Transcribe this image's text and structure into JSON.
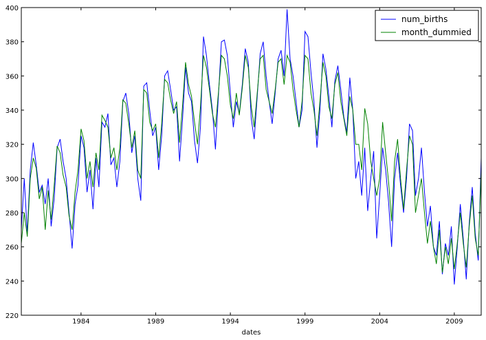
{
  "chart_data": {
    "type": "line",
    "xlabel": "dates",
    "ylabel": "",
    "title": "",
    "xlim": [
      1980.0,
      2010.8
    ],
    "ylim": [
      220,
      400
    ],
    "x_ticks": [
      1984,
      1989,
      1994,
      1999,
      2004,
      2009
    ],
    "y_ticks": [
      220,
      240,
      260,
      280,
      300,
      320,
      340,
      360,
      380,
      400
    ],
    "grid": false,
    "legend": "top-right",
    "colors": {
      "num_births": "#0000ff",
      "month_dummied": "#008000"
    },
    "series": [
      {
        "name": "num_births",
        "points": [
          [
            1980.0,
            270
          ],
          [
            1980.2,
            300
          ],
          [
            1980.4,
            268
          ],
          [
            1980.6,
            305
          ],
          [
            1980.8,
            321
          ],
          [
            1981.0,
            308
          ],
          [
            1981.2,
            292
          ],
          [
            1981.4,
            296
          ],
          [
            1981.6,
            285
          ],
          [
            1981.8,
            300
          ],
          [
            1982.0,
            272
          ],
          [
            1982.2,
            288
          ],
          [
            1982.4,
            318
          ],
          [
            1982.6,
            323
          ],
          [
            1982.8,
            310
          ],
          [
            1983.0,
            300
          ],
          [
            1983.2,
            280
          ],
          [
            1983.4,
            259
          ],
          [
            1983.6,
            285
          ],
          [
            1983.8,
            296
          ],
          [
            1984.0,
            325
          ],
          [
            1984.2,
            318
          ],
          [
            1984.4,
            292
          ],
          [
            1984.6,
            305
          ],
          [
            1984.8,
            282
          ],
          [
            1985.0,
            312
          ],
          [
            1985.2,
            295
          ],
          [
            1985.4,
            333
          ],
          [
            1985.6,
            330
          ],
          [
            1985.8,
            338
          ],
          [
            1986.0,
            308
          ],
          [
            1986.2,
            312
          ],
          [
            1986.4,
            295
          ],
          [
            1986.6,
            310
          ],
          [
            1986.8,
            345
          ],
          [
            1987.0,
            350
          ],
          [
            1987.2,
            338
          ],
          [
            1987.4,
            315
          ],
          [
            1987.6,
            325
          ],
          [
            1987.8,
            300
          ],
          [
            1988.0,
            287
          ],
          [
            1988.2,
            354
          ],
          [
            1988.4,
            356
          ],
          [
            1988.6,
            340
          ],
          [
            1988.8,
            325
          ],
          [
            1989.0,
            330
          ],
          [
            1989.2,
            305
          ],
          [
            1989.4,
            325
          ],
          [
            1989.6,
            360
          ],
          [
            1989.8,
            363
          ],
          [
            1990.0,
            352
          ],
          [
            1990.2,
            340
          ],
          [
            1990.4,
            342
          ],
          [
            1990.6,
            310
          ],
          [
            1990.8,
            335
          ],
          [
            1991.0,
            365
          ],
          [
            1991.2,
            350
          ],
          [
            1991.4,
            345
          ],
          [
            1991.6,
            322
          ],
          [
            1991.8,
            309
          ],
          [
            1992.0,
            330
          ],
          [
            1992.2,
            383
          ],
          [
            1992.4,
            372
          ],
          [
            1992.6,
            355
          ],
          [
            1992.8,
            340
          ],
          [
            1993.0,
            317
          ],
          [
            1993.2,
            348
          ],
          [
            1993.4,
            380
          ],
          [
            1993.6,
            381
          ],
          [
            1993.8,
            372
          ],
          [
            1994.0,
            350
          ],
          [
            1994.2,
            330
          ],
          [
            1994.4,
            345
          ],
          [
            1994.6,
            338
          ],
          [
            1994.8,
            355
          ],
          [
            1995.0,
            376
          ],
          [
            1995.2,
            368
          ],
          [
            1995.4,
            335
          ],
          [
            1995.6,
            323
          ],
          [
            1995.8,
            348
          ],
          [
            1996.0,
            373
          ],
          [
            1996.2,
            380
          ],
          [
            1996.4,
            360
          ],
          [
            1996.6,
            345
          ],
          [
            1996.8,
            332
          ],
          [
            1997.0,
            350
          ],
          [
            1997.2,
            370
          ],
          [
            1997.4,
            375
          ],
          [
            1997.6,
            360
          ],
          [
            1997.8,
            399
          ],
          [
            1998.0,
            370
          ],
          [
            1998.2,
            360
          ],
          [
            1998.4,
            345
          ],
          [
            1998.6,
            330
          ],
          [
            1998.8,
            340
          ],
          [
            1999.0,
            386
          ],
          [
            1999.2,
            383
          ],
          [
            1999.4,
            362
          ],
          [
            1999.6,
            345
          ],
          [
            1999.8,
            318
          ],
          [
            2000.0,
            340
          ],
          [
            2000.2,
            373
          ],
          [
            2000.4,
            364
          ],
          [
            2000.6,
            348
          ],
          [
            2000.8,
            330
          ],
          [
            2001.0,
            357
          ],
          [
            2001.2,
            366
          ],
          [
            2001.4,
            352
          ],
          [
            2001.6,
            336
          ],
          [
            2001.8,
            327
          ],
          [
            2002.0,
            359
          ],
          [
            2002.2,
            340
          ],
          [
            2002.4,
            300
          ],
          [
            2002.6,
            310
          ],
          [
            2002.8,
            290
          ],
          [
            2003.0,
            318
          ],
          [
            2003.2,
            281
          ],
          [
            2003.4,
            300
          ],
          [
            2003.6,
            316
          ],
          [
            2003.8,
            265
          ],
          [
            2004.0,
            290
          ],
          [
            2004.2,
            318
          ],
          [
            2004.4,
            305
          ],
          [
            2004.6,
            286
          ],
          [
            2004.8,
            260
          ],
          [
            2005.0,
            300
          ],
          [
            2005.2,
            315
          ],
          [
            2005.4,
            296
          ],
          [
            2005.6,
            280
          ],
          [
            2005.8,
            300
          ],
          [
            2006.0,
            332
          ],
          [
            2006.2,
            328
          ],
          [
            2006.4,
            290
          ],
          [
            2006.6,
            300
          ],
          [
            2006.8,
            318
          ],
          [
            2007.0,
            292
          ],
          [
            2007.2,
            272
          ],
          [
            2007.4,
            284
          ],
          [
            2007.6,
            260
          ],
          [
            2007.8,
            255
          ],
          [
            2008.0,
            275
          ],
          [
            2008.2,
            244
          ],
          [
            2008.4,
            262
          ],
          [
            2008.6,
            255
          ],
          [
            2008.8,
            272
          ],
          [
            2009.0,
            238
          ],
          [
            2009.2,
            260
          ],
          [
            2009.4,
            285
          ],
          [
            2009.6,
            265
          ],
          [
            2009.8,
            241
          ],
          [
            2010.0,
            274
          ],
          [
            2010.2,
            295
          ],
          [
            2010.4,
            268
          ],
          [
            2010.6,
            252
          ],
          [
            2010.8,
            312
          ],
          [
            2010.8,
            276
          ]
        ]
      },
      {
        "name": "month_dummied",
        "points": [
          [
            1980.0,
            262
          ],
          [
            1980.2,
            280
          ],
          [
            1980.4,
            266
          ],
          [
            1980.6,
            300
          ],
          [
            1980.8,
            312
          ],
          [
            1981.0,
            306
          ],
          [
            1981.2,
            288
          ],
          [
            1981.4,
            295
          ],
          [
            1981.6,
            270
          ],
          [
            1981.8,
            293
          ],
          [
            1982.0,
            276
          ],
          [
            1982.2,
            296
          ],
          [
            1982.4,
            319
          ],
          [
            1982.6,
            315
          ],
          [
            1982.8,
            302
          ],
          [
            1983.0,
            295
          ],
          [
            1983.2,
            278
          ],
          [
            1983.4,
            270
          ],
          [
            1983.6,
            292
          ],
          [
            1983.8,
            305
          ],
          [
            1984.0,
            329
          ],
          [
            1984.2,
            322
          ],
          [
            1984.4,
            300
          ],
          [
            1984.6,
            310
          ],
          [
            1984.8,
            295
          ],
          [
            1985.0,
            315
          ],
          [
            1985.2,
            305
          ],
          [
            1985.4,
            337
          ],
          [
            1985.6,
            334
          ],
          [
            1985.8,
            330
          ],
          [
            1986.0,
            312
          ],
          [
            1986.2,
            318
          ],
          [
            1986.4,
            305
          ],
          [
            1986.6,
            318
          ],
          [
            1986.8,
            346
          ],
          [
            1987.0,
            344
          ],
          [
            1987.2,
            332
          ],
          [
            1987.4,
            318
          ],
          [
            1987.6,
            328
          ],
          [
            1987.8,
            305
          ],
          [
            1988.0,
            300
          ],
          [
            1988.2,
            352
          ],
          [
            1988.4,
            350
          ],
          [
            1988.6,
            333
          ],
          [
            1988.8,
            328
          ],
          [
            1989.0,
            332
          ],
          [
            1989.2,
            312
          ],
          [
            1989.4,
            332
          ],
          [
            1989.6,
            358
          ],
          [
            1989.8,
            356
          ],
          [
            1990.0,
            346
          ],
          [
            1990.2,
            338
          ],
          [
            1990.4,
            345
          ],
          [
            1990.6,
            321
          ],
          [
            1990.8,
            343
          ],
          [
            1991.0,
            368
          ],
          [
            1991.2,
            355
          ],
          [
            1991.4,
            348
          ],
          [
            1991.6,
            333
          ],
          [
            1991.8,
            320
          ],
          [
            1992.0,
            342
          ],
          [
            1992.2,
            372
          ],
          [
            1992.4,
            365
          ],
          [
            1992.6,
            352
          ],
          [
            1992.8,
            338
          ],
          [
            1993.0,
            330
          ],
          [
            1993.2,
            350
          ],
          [
            1993.4,
            372
          ],
          [
            1993.6,
            370
          ],
          [
            1993.8,
            360
          ],
          [
            1994.0,
            343
          ],
          [
            1994.2,
            335
          ],
          [
            1994.4,
            350
          ],
          [
            1994.6,
            337
          ],
          [
            1994.8,
            353
          ],
          [
            1995.0,
            372
          ],
          [
            1995.2,
            365
          ],
          [
            1995.4,
            342
          ],
          [
            1995.6,
            330
          ],
          [
            1995.8,
            350
          ],
          [
            1996.0,
            370
          ],
          [
            1996.2,
            372
          ],
          [
            1996.4,
            352
          ],
          [
            1996.6,
            345
          ],
          [
            1996.8,
            338
          ],
          [
            1997.0,
            352
          ],
          [
            1997.2,
            368
          ],
          [
            1997.4,
            370
          ],
          [
            1997.6,
            355
          ],
          [
            1997.8,
            372
          ],
          [
            1998.0,
            368
          ],
          [
            1998.2,
            352
          ],
          [
            1998.4,
            340
          ],
          [
            1998.6,
            330
          ],
          [
            1998.8,
            345
          ],
          [
            1999.0,
            372
          ],
          [
            1999.2,
            370
          ],
          [
            1999.4,
            350
          ],
          [
            1999.6,
            340
          ],
          [
            1999.8,
            325
          ],
          [
            2000.0,
            345
          ],
          [
            2000.2,
            368
          ],
          [
            2000.4,
            360
          ],
          [
            2000.6,
            342
          ],
          [
            2000.8,
            335
          ],
          [
            2001.0,
            355
          ],
          [
            2001.2,
            362
          ],
          [
            2001.4,
            345
          ],
          [
            2001.6,
            335
          ],
          [
            2001.8,
            325
          ],
          [
            2002.0,
            348
          ],
          [
            2002.2,
            340
          ],
          [
            2002.4,
            320
          ],
          [
            2002.6,
            320
          ],
          [
            2002.8,
            305
          ],
          [
            2003.0,
            341
          ],
          [
            2003.2,
            332
          ],
          [
            2003.4,
            310
          ],
          [
            2003.6,
            300
          ],
          [
            2003.8,
            290
          ],
          [
            2004.0,
            300
          ],
          [
            2004.2,
            333
          ],
          [
            2004.4,
            315
          ],
          [
            2004.6,
            298
          ],
          [
            2004.8,
            275
          ],
          [
            2005.0,
            310
          ],
          [
            2005.2,
            323
          ],
          [
            2005.4,
            300
          ],
          [
            2005.6,
            282
          ],
          [
            2005.8,
            305
          ],
          [
            2006.0,
            325
          ],
          [
            2006.2,
            320
          ],
          [
            2006.4,
            280
          ],
          [
            2006.6,
            290
          ],
          [
            2006.8,
            300
          ],
          [
            2007.0,
            280
          ],
          [
            2007.2,
            262
          ],
          [
            2007.4,
            275
          ],
          [
            2007.6,
            260
          ],
          [
            2007.8,
            250
          ],
          [
            2008.0,
            270
          ],
          [
            2008.2,
            245
          ],
          [
            2008.4,
            260
          ],
          [
            2008.6,
            250
          ],
          [
            2008.8,
            265
          ],
          [
            2009.0,
            247
          ],
          [
            2009.2,
            262
          ],
          [
            2009.4,
            280
          ],
          [
            2009.6,
            262
          ],
          [
            2009.8,
            248
          ],
          [
            2010.0,
            272
          ],
          [
            2010.2,
            290
          ],
          [
            2010.4,
            265
          ],
          [
            2010.6,
            255
          ],
          [
            2010.8,
            305
          ],
          [
            2010.8,
            280
          ]
        ]
      }
    ]
  }
}
